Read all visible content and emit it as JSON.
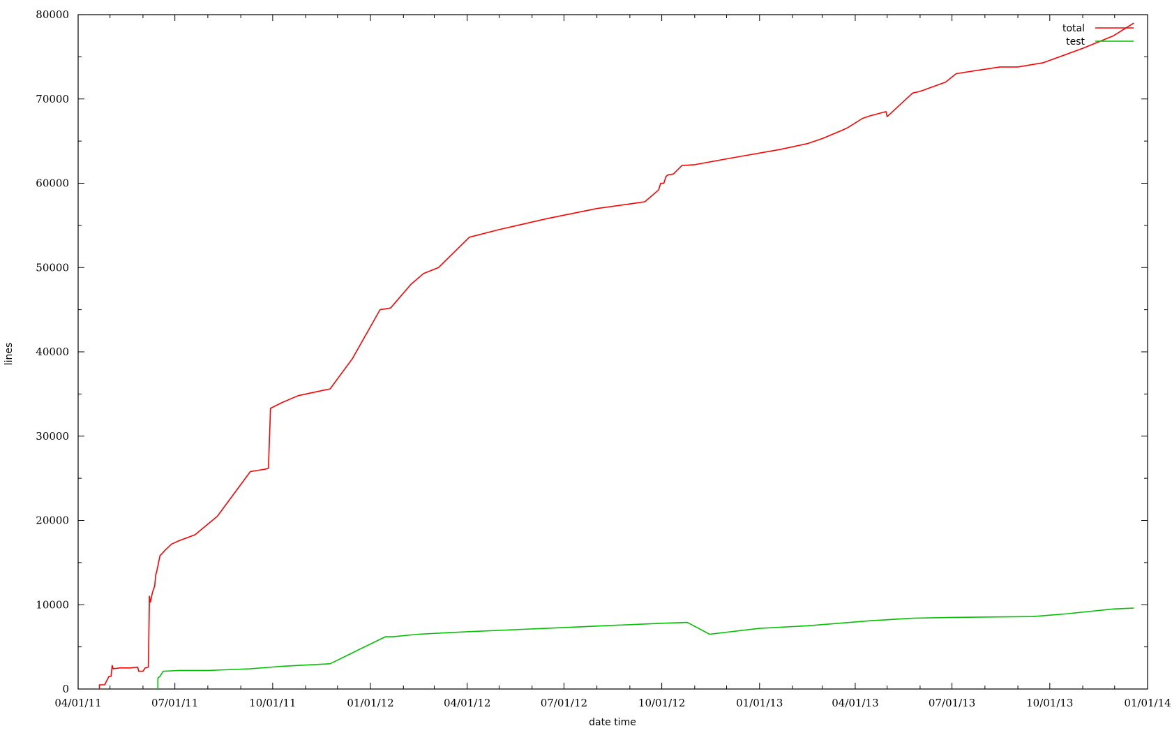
{
  "chart_data": {
    "type": "line",
    "title": "",
    "xlabel": "date time",
    "ylabel": "lines",
    "xlim": [
      "2011-04-01",
      "2014-01-01"
    ],
    "ylim": [
      0,
      80000
    ],
    "x_ticks": [
      "2011-04-01",
      "2011-05-01",
      "2011-06-01",
      "2011-07-01",
      "2011-08-01",
      "2011-09-01",
      "2011-10-01",
      "2011-11-01",
      "2011-12-01",
      "2012-01-01",
      "2012-02-01",
      "2012-03-01",
      "2012-04-01",
      "2012-05-01",
      "2012-06-01",
      "2012-07-01",
      "2012-08-01",
      "2012-09-01",
      "2012-10-01",
      "2012-11-01",
      "2012-12-01",
      "2013-01-01",
      "2013-02-01",
      "2013-03-01",
      "2013-04-01",
      "2013-05-01",
      "2013-06-01",
      "2013-07-01",
      "2013-08-01",
      "2013-09-01",
      "2013-10-01",
      "2013-11-01",
      "2013-12-01",
      "2014-01-01"
    ],
    "x_tick_labels": [
      {
        "x": "2011-04-01",
        "label": "04/01/11"
      },
      {
        "x": "2011-07-01",
        "label": "07/01/11"
      },
      {
        "x": "2011-10-01",
        "label": "10/01/11"
      },
      {
        "x": "2012-01-01",
        "label": "01/01/12"
      },
      {
        "x": "2012-04-01",
        "label": "04/01/12"
      },
      {
        "x": "2012-07-01",
        "label": "07/01/12"
      },
      {
        "x": "2012-10-01",
        "label": "10/01/12"
      },
      {
        "x": "2013-01-01",
        "label": "01/01/13"
      },
      {
        "x": "2013-04-01",
        "label": "04/01/13"
      },
      {
        "x": "2013-07-01",
        "label": "07/01/13"
      },
      {
        "x": "2013-10-01",
        "label": "10/01/13"
      },
      {
        "x": "2014-01-01",
        "label": "01/01/14"
      }
    ],
    "y_ticks": [
      0,
      10000,
      20000,
      30000,
      40000,
      50000,
      60000,
      70000,
      80000
    ],
    "y_minor_ticks": [
      5000,
      15000,
      25000,
      35000,
      45000,
      55000,
      65000,
      75000
    ],
    "grid": false,
    "legend_position": "top-right",
    "series": [
      {
        "name": "total",
        "color": "#ff0000",
        "points": [
          [
            "2011-04-21",
            0
          ],
          [
            "2011-04-21",
            500
          ],
          [
            "2011-04-26",
            500
          ],
          [
            "2011-04-28",
            1000
          ],
          [
            "2011-04-30",
            1500
          ],
          [
            "2011-05-02",
            1500
          ],
          [
            "2011-05-03",
            2800
          ],
          [
            "2011-05-04",
            2400
          ],
          [
            "2011-05-10",
            2500
          ],
          [
            "2011-05-20",
            2500
          ],
          [
            "2011-05-27",
            2600
          ],
          [
            "2011-05-28",
            2100
          ],
          [
            "2011-06-01",
            2100
          ],
          [
            "2011-06-03",
            2500
          ],
          [
            "2011-06-06",
            2600
          ],
          [
            "2011-06-07",
            10000
          ],
          [
            "2011-06-07",
            11000
          ],
          [
            "2011-06-08",
            10300
          ],
          [
            "2011-06-10",
            11500
          ],
          [
            "2011-06-12",
            12200
          ],
          [
            "2011-06-13",
            13500
          ],
          [
            "2011-06-14",
            14000
          ],
          [
            "2011-06-17",
            15800
          ],
          [
            "2011-06-22",
            16500
          ],
          [
            "2011-06-28",
            17200
          ],
          [
            "2011-07-05",
            17600
          ],
          [
            "2011-07-20",
            18300
          ],
          [
            "2011-08-10",
            20500
          ],
          [
            "2011-09-10",
            25800
          ],
          [
            "2011-09-25",
            26100
          ],
          [
            "2011-09-27",
            26200
          ],
          [
            "2011-09-29",
            33300
          ],
          [
            "2011-10-10",
            34000
          ],
          [
            "2011-10-25",
            34800
          ],
          [
            "2011-11-05",
            35100
          ],
          [
            "2011-11-20",
            35500
          ],
          [
            "2011-11-24",
            35600
          ],
          [
            "2011-12-15",
            39200
          ],
          [
            "2012-01-10",
            45000
          ],
          [
            "2012-01-15",
            45100
          ],
          [
            "2012-01-20",
            45200
          ],
          [
            "2012-02-08",
            48000
          ],
          [
            "2012-02-20",
            49300
          ],
          [
            "2012-03-05",
            50000
          ],
          [
            "2012-04-03",
            53600
          ],
          [
            "2012-05-01",
            54500
          ],
          [
            "2012-06-15",
            55800
          ],
          [
            "2012-08-01",
            57000
          ],
          [
            "2012-09-15",
            57800
          ],
          [
            "2012-09-28",
            59200
          ],
          [
            "2012-09-30",
            60000
          ],
          [
            "2012-10-03",
            60000
          ],
          [
            "2012-10-05",
            60800
          ],
          [
            "2012-10-07",
            61000
          ],
          [
            "2012-10-12",
            61100
          ],
          [
            "2012-10-20",
            62100
          ],
          [
            "2012-11-01",
            62200
          ],
          [
            "2012-12-10",
            63100
          ],
          [
            "2013-01-20",
            64000
          ],
          [
            "2013-02-15",
            64700
          ],
          [
            "2013-03-01",
            65300
          ],
          [
            "2013-03-20",
            66300
          ],
          [
            "2013-03-25",
            66600
          ],
          [
            "2013-04-08",
            67700
          ],
          [
            "2013-04-15",
            68000
          ],
          [
            "2013-04-30",
            68500
          ],
          [
            "2013-05-01",
            67900
          ],
          [
            "2013-05-25",
            70700
          ],
          [
            "2013-06-01",
            70900
          ],
          [
            "2013-06-25",
            72000
          ],
          [
            "2013-07-05",
            73000
          ],
          [
            "2013-07-20",
            73300
          ],
          [
            "2013-08-15",
            73800
          ],
          [
            "2013-09-01",
            73800
          ],
          [
            "2013-09-25",
            74300
          ],
          [
            "2013-11-01",
            76000
          ],
          [
            "2013-11-30",
            77500
          ],
          [
            "2013-12-19",
            79000
          ]
        ]
      },
      {
        "name": "test",
        "color": "#00c000",
        "points": [
          [
            "2011-06-15",
            0
          ],
          [
            "2011-06-15",
            1300
          ],
          [
            "2011-06-17",
            1500
          ],
          [
            "2011-06-20",
            2100
          ],
          [
            "2011-07-05",
            2200
          ],
          [
            "2011-08-01",
            2200
          ],
          [
            "2011-09-10",
            2400
          ],
          [
            "2011-10-10",
            2700
          ],
          [
            "2011-11-24",
            3000
          ],
          [
            "2012-01-15",
            6200
          ],
          [
            "2012-01-22",
            6200
          ],
          [
            "2012-02-15",
            6500
          ],
          [
            "2012-04-01",
            6800
          ],
          [
            "2012-07-01",
            7300
          ],
          [
            "2012-10-01",
            7800
          ],
          [
            "2012-10-25",
            7900
          ],
          [
            "2012-11-15",
            6500
          ],
          [
            "2013-01-01",
            7200
          ],
          [
            "2013-02-15",
            7500
          ],
          [
            "2013-04-15",
            8100
          ],
          [
            "2013-05-25",
            8400
          ],
          [
            "2013-07-01",
            8500
          ],
          [
            "2013-09-15",
            8600
          ],
          [
            "2013-10-15",
            8900
          ],
          [
            "2013-11-30",
            9500
          ],
          [
            "2013-12-19",
            9600
          ]
        ]
      }
    ]
  }
}
